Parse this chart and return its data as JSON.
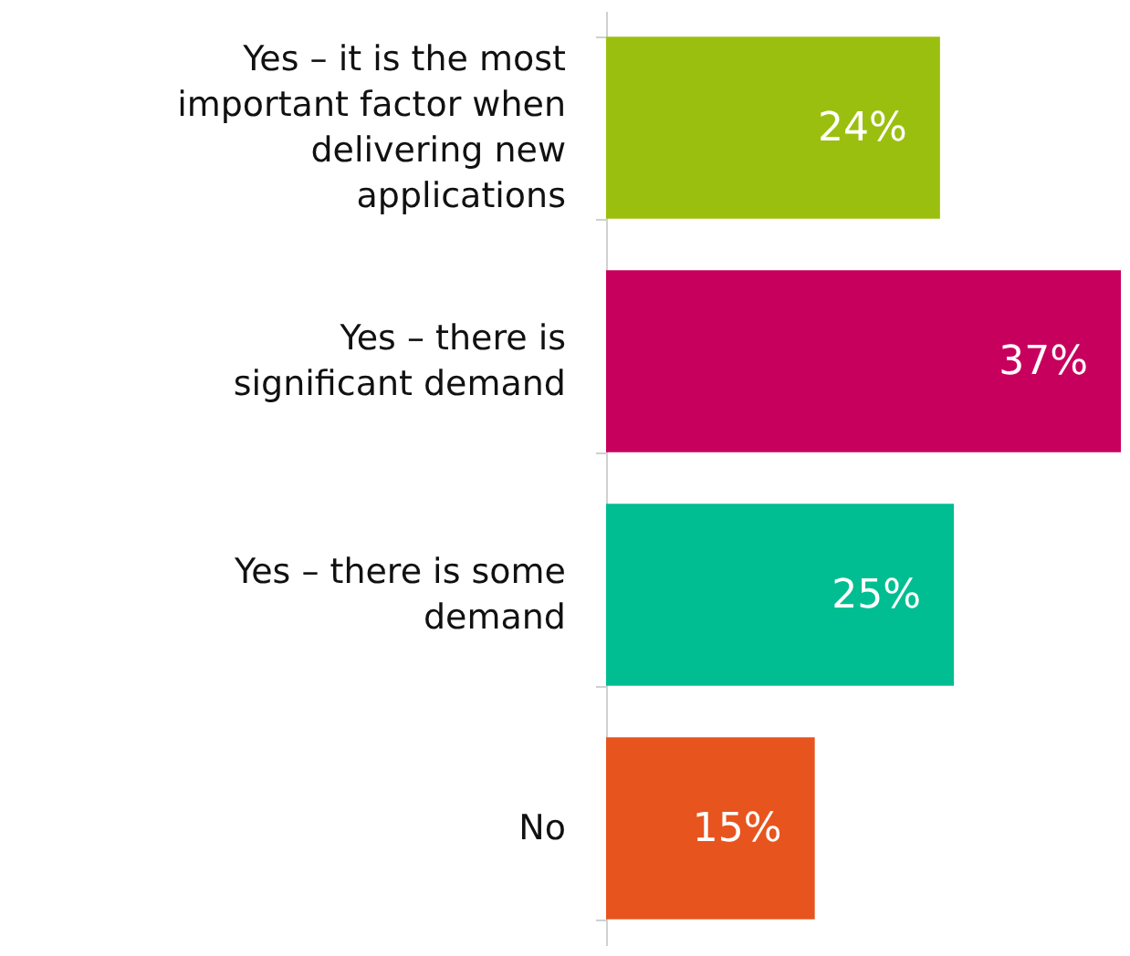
{
  "chart_data": {
    "type": "bar",
    "orientation": "horizontal",
    "categories": [
      "Yes – it is the most important factor when delivering new applications",
      "Yes – there is significant demand",
      "Yes – there is some demand",
      "No"
    ],
    "values": [
      24,
      37,
      25,
      15
    ],
    "value_labels": [
      "24%",
      "37%",
      "25%",
      "15%"
    ],
    "colors": [
      "#9bbf0e",
      "#c8005d",
      "#00be91",
      "#e8541e"
    ]
  }
}
